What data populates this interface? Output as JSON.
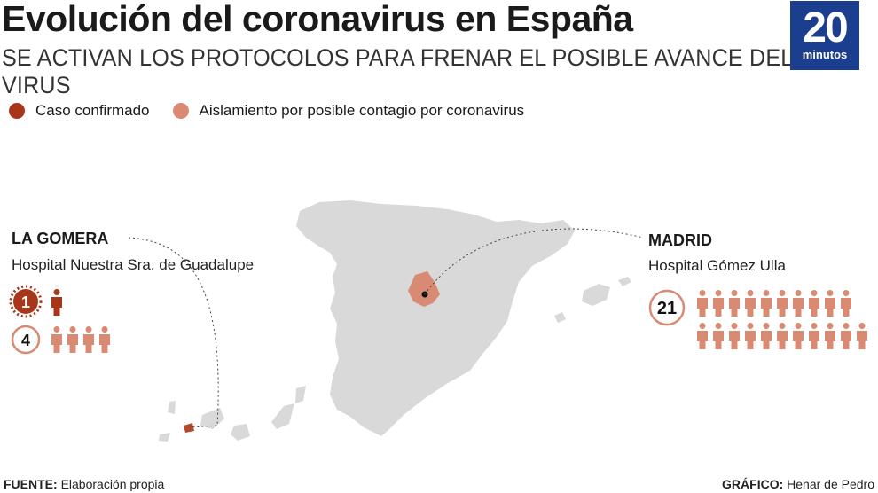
{
  "header": {
    "title": "Evolución del coronavirus en España",
    "subtitle": "SE ACTIVAN LOS PROTOCOLOS PARA FRENAR EL POSIBLE AVANCE DEL VIRUS"
  },
  "logo": {
    "number": "20",
    "word": "minutos",
    "color": "#1b3e8f"
  },
  "legend": [
    {
      "label": "Caso confirmado",
      "color": "#a8361a"
    },
    {
      "label": "Aislamiento por posible contagio por coronavirus",
      "color": "#d98a73"
    }
  ],
  "regions": {
    "la_gomera": {
      "name": "LA GOMERA",
      "hospital": "Hospital Nuestra Sra. de Guadalupe",
      "confirmed": "1",
      "isolated": "4",
      "confirmed_count": 1,
      "isolated_count": 4
    },
    "madrid": {
      "name": "MADRID",
      "hospital": "Hospital Gómez Ulla",
      "isolated": "21",
      "isolated_count": 21
    }
  },
  "footer": {
    "source_label": "FUENTE:",
    "source_value": "Elaboración propia",
    "credit_label": "GRÁFICO:",
    "credit_value": "Henar de Pedro"
  },
  "colors": {
    "confirmed": "#a8361a",
    "isolated": "#d98a73",
    "land": "#d9d9d9"
  }
}
